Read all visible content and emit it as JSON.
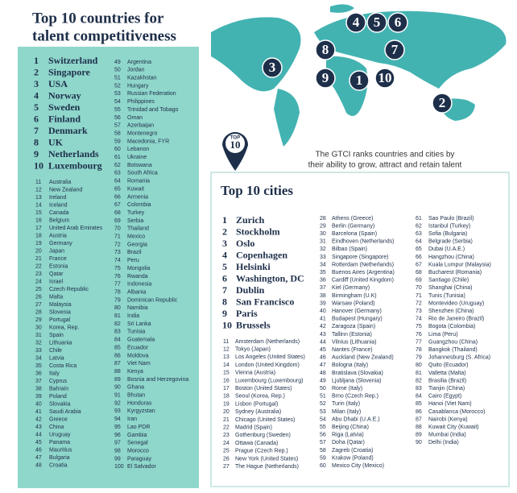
{
  "header": {
    "title_line1": "Top 10 countries for",
    "title_line2": "talent competitiveness"
  },
  "map": {
    "markers": [
      "1",
      "2",
      "3",
      "4",
      "5",
      "6",
      "7",
      "8",
      "9",
      "10"
    ],
    "badge_top": "TOP",
    "badge_num": "10",
    "tagline_line1": "The GTCI ranks countries and cities by",
    "tagline_line2": "their ability to grow, attract and retain talent"
  },
  "countries": {
    "top10": [
      [
        1,
        "Switzerland"
      ],
      [
        2,
        "Singapore"
      ],
      [
        3,
        "USA"
      ],
      [
        4,
        "Norway"
      ],
      [
        5,
        "Sweden"
      ],
      [
        6,
        "Finland"
      ],
      [
        7,
        "Denmark"
      ],
      [
        8,
        "UK"
      ],
      [
        9,
        "Netherlands"
      ],
      [
        10,
        "Luxembourg"
      ]
    ],
    "others": [
      [
        11,
        "Australia"
      ],
      [
        12,
        "New Zealand"
      ],
      [
        13,
        "Ireland"
      ],
      [
        14,
        "Iceland"
      ],
      [
        15,
        "Canada"
      ],
      [
        16,
        "Belgium"
      ],
      [
        17,
        "United Arab Emirates"
      ],
      [
        18,
        "Austria"
      ],
      [
        19,
        "Germany"
      ],
      [
        20,
        "Japan"
      ],
      [
        21,
        "France"
      ],
      [
        22,
        "Estonia"
      ],
      [
        23,
        "Qatar"
      ],
      [
        24,
        "Israel"
      ],
      [
        25,
        "Czech Republic"
      ],
      [
        26,
        "Malta"
      ],
      [
        27,
        "Malaysia"
      ],
      [
        28,
        "Slovenia"
      ],
      [
        29,
        "Portugal"
      ],
      [
        30,
        "Korea, Rep."
      ],
      [
        31,
        "Spain"
      ],
      [
        32,
        "Lithuania"
      ],
      [
        33,
        "Chile"
      ],
      [
        34,
        "Latvia"
      ],
      [
        35,
        "Costa Rica"
      ],
      [
        36,
        "Italy"
      ],
      [
        37,
        "Cyprus"
      ],
      [
        38,
        "Bahrain"
      ],
      [
        39,
        "Poland"
      ],
      [
        40,
        "Slovakia"
      ],
      [
        41,
        "Saudi Arabia"
      ],
      [
        42,
        "Greece"
      ],
      [
        43,
        "China"
      ],
      [
        44,
        "Uruguay"
      ],
      [
        45,
        "Panama"
      ],
      [
        46,
        "Mauritius"
      ],
      [
        47,
        "Bulgaria"
      ],
      [
        48,
        "Croatia"
      ],
      [
        49,
        "Argentina"
      ],
      [
        50,
        "Jordan"
      ],
      [
        51,
        "Kazakhstan"
      ],
      [
        52,
        "Hungary"
      ],
      [
        53,
        "Russian Federation"
      ],
      [
        54,
        "Philippines"
      ],
      [
        55,
        "Trinidad and Tobago"
      ],
      [
        56,
        "Oman"
      ],
      [
        57,
        "Azerbaijan"
      ],
      [
        58,
        "Montenegro"
      ],
      [
        59,
        "Macedonia, FYR"
      ],
      [
        60,
        "Lebanon"
      ],
      [
        61,
        "Ukraine"
      ],
      [
        62,
        "Botswana"
      ],
      [
        63,
        "South Africa"
      ],
      [
        64,
        "Romania"
      ],
      [
        65,
        "Kuwait"
      ],
      [
        66,
        "Armenia"
      ],
      [
        67,
        "Colombia"
      ],
      [
        68,
        "Turkey"
      ],
      [
        69,
        "Serbia"
      ],
      [
        70,
        "Thailand"
      ],
      [
        71,
        "Mexico"
      ],
      [
        72,
        "Georgia"
      ],
      [
        73,
        "Brazil"
      ],
      [
        74,
        "Peru"
      ],
      [
        75,
        "Mongolia"
      ],
      [
        76,
        "Rwanda"
      ],
      [
        77,
        "Indonesia"
      ],
      [
        78,
        "Albania"
      ],
      [
        79,
        "Dominican Republic"
      ],
      [
        80,
        "Namibia"
      ],
      [
        81,
        "India"
      ],
      [
        82,
        "Sri Lanka"
      ],
      [
        83,
        "Tunisia"
      ],
      [
        84,
        "Guatemala"
      ],
      [
        85,
        "Ecuador"
      ],
      [
        86,
        "Moldova"
      ],
      [
        87,
        "Viet Nam"
      ],
      [
        88,
        "Kenya"
      ],
      [
        89,
        "Bosnia and Herzegovina"
      ],
      [
        90,
        "Ghana"
      ],
      [
        91,
        "Bhutan"
      ],
      [
        92,
        "Honduras"
      ],
      [
        93,
        "Kyrgyzstan"
      ],
      [
        94,
        "Iran"
      ],
      [
        95,
        "Lao PDR"
      ],
      [
        96,
        "Gambia"
      ],
      [
        97,
        "Senegal"
      ],
      [
        98,
        "Morocco"
      ],
      [
        99,
        "Paraguay"
      ],
      [
        100,
        "El Salvador"
      ]
    ]
  },
  "cities": {
    "title": "Top 10 cities",
    "top10": [
      [
        1,
        "Zurich"
      ],
      [
        2,
        "Stockholm"
      ],
      [
        3,
        "Oslo"
      ],
      [
        4,
        "Copenhagen"
      ],
      [
        5,
        "Helsinki"
      ],
      [
        6,
        "Washington, DC"
      ],
      [
        7,
        "Dublin"
      ],
      [
        8,
        "San Francisco"
      ],
      [
        9,
        "Paris"
      ],
      [
        10,
        "Brussels"
      ]
    ],
    "others": [
      [
        11,
        "Amsterdam (Netherlands)"
      ],
      [
        12,
        "Tokyo (Japan)"
      ],
      [
        13,
        "Los Angeles (United States)"
      ],
      [
        14,
        "London (United Kingdom)"
      ],
      [
        15,
        "Vienna (Austria)"
      ],
      [
        16,
        "Luxembourg (Luxembourg)"
      ],
      [
        17,
        "Boston (United States)"
      ],
      [
        18,
        "Seoul (Korea, Rep.)"
      ],
      [
        19,
        "Lisbon (Portugal)"
      ],
      [
        20,
        "Sydney (Australia)"
      ],
      [
        21,
        "Chicago (United States)"
      ],
      [
        22,
        "Madrid (Spain)"
      ],
      [
        23,
        "Gothenburg (Sweden)"
      ],
      [
        24,
        "Ottawa (Canada)"
      ],
      [
        25,
        "Prague (Czech Rep.)"
      ],
      [
        26,
        "New York (United States)"
      ],
      [
        27,
        "The Hague (Netherlands)"
      ],
      [
        28,
        "Athens (Greece)"
      ],
      [
        29,
        "Berlin (Germany)"
      ],
      [
        30,
        "Barcelona (Spain)"
      ],
      [
        31,
        "Eindhoven (Netherlands)"
      ],
      [
        32,
        "Bilbao (Spain)"
      ],
      [
        33,
        "Singapore (Singapore)"
      ],
      [
        34,
        "Rotterdam (Netherlands)"
      ],
      [
        35,
        "Buenos Aires (Argentina)"
      ],
      [
        36,
        "Cardiff (United Kingdom)"
      ],
      [
        37,
        "Kiel (Germany)"
      ],
      [
        38,
        "Birmingham (U.K)"
      ],
      [
        39,
        "Warsaw (Poland)"
      ],
      [
        40,
        "Hanover (Germany)"
      ],
      [
        41,
        "Budapest (Hungary)"
      ],
      [
        42,
        "Zaragoza (Spain)"
      ],
      [
        43,
        "Tallinn (Estonia)"
      ],
      [
        44,
        "Vilnius (Lithuania)"
      ],
      [
        45,
        "Nantes (France)"
      ],
      [
        46,
        "Auckland (New Zealand)"
      ],
      [
        47,
        "Bologna (Italy)"
      ],
      [
        48,
        "Bratislava (Slovakia)"
      ],
      [
        49,
        "Ljubljana (Slovenia)"
      ],
      [
        50,
        "Rome (Italy)"
      ],
      [
        51,
        "Brno (Czech Rep.)"
      ],
      [
        52,
        "Turin (Italy)"
      ],
      [
        53,
        "Milan (Italy)"
      ],
      [
        54,
        "Abu Dhabi (U.A.E.)"
      ],
      [
        55,
        "Beijing (China)"
      ],
      [
        56,
        "Riga (Latvia)"
      ],
      [
        57,
        "Doha (Qatar)"
      ],
      [
        58,
        "Zagreb (Croatia)"
      ],
      [
        59,
        "Krakow (Poland)"
      ],
      [
        60,
        "Mexico City (Mexico)"
      ],
      [
        61,
        "Sao Paulo (Brazil)"
      ],
      [
        62,
        "Istanbul (Turkey)"
      ],
      [
        63,
        "Sofia (Bulgaria)"
      ],
      [
        64,
        "Belgrade (Serbia)"
      ],
      [
        65,
        "Dubai (U.A.E.)"
      ],
      [
        66,
        "Hangzhou (China)"
      ],
      [
        67,
        "Kuala Lumpur (Malaysia)"
      ],
      [
        68,
        "Bucharest (Romania)"
      ],
      [
        69,
        "Santiago (Chile)"
      ],
      [
        70,
        "Shanghai (China)"
      ],
      [
        71,
        "Tunis (Tunisia)"
      ],
      [
        72,
        "Montevideo (Uruguay)"
      ],
      [
        73,
        "Shenzhen (China)"
      ],
      [
        74,
        "Rio de Janeiro (Brazil)"
      ],
      [
        75,
        "Bogota (Colombia)"
      ],
      [
        76,
        "Lima (Peru)"
      ],
      [
        77,
        "Guangzhou (China)"
      ],
      [
        78,
        "Bangkok (Thailand)"
      ],
      [
        79,
        "Johannesburg (S. Africa)"
      ],
      [
        80,
        "Quito (Ecuador)"
      ],
      [
        81,
        "Valletta (Malta)"
      ],
      [
        82,
        "Brasilia (Brazil)"
      ],
      [
        83,
        "Tianjin (China)"
      ],
      [
        84,
        "Cairo (Egypt)"
      ],
      [
        85,
        "Hanoi (Viet Nam)"
      ],
      [
        86,
        "Casablanca (Morocco)"
      ],
      [
        87,
        "Nairobi (Kenya)"
      ],
      [
        88,
        "Kuwait City (Kuwait)"
      ],
      [
        89,
        "Mumbai (India)"
      ],
      [
        90,
        "Delhi (India)"
      ]
    ]
  }
}
